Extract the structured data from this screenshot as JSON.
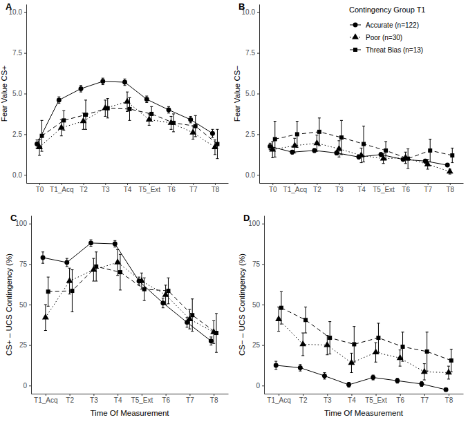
{
  "chart_data": [
    {
      "type": "line",
      "title": "A",
      "y_label": "Fear Value CS+",
      "categories": [
        "T0",
        "T1_Acq",
        "T2",
        "T3",
        "T4",
        "T5_Ext",
        "T6",
        "T7",
        "T8"
      ],
      "ylim": [
        -0.5,
        10.5
      ],
      "yticks": [
        {
          "value": 0,
          "label": "0.0"
        },
        2.5,
        {
          "value": 5,
          "label": "5.0"
        },
        7.5,
        {
          "value": 10,
          "label": "10.0"
        }
      ],
      "series": [
        {
          "color": "#000000",
          "marker": "circle",
          "line_style": "solid",
          "values": [
            1.9,
            4.6,
            5.3,
            5.75,
            5.7,
            4.65,
            4.0,
            3.4,
            2.55
          ],
          "errors": [
            0.25,
            0.2,
            0.2,
            0.2,
            0.2,
            0.2,
            0.2,
            0.2,
            0.25
          ]
        },
        {
          "color": "#000000",
          "marker": "triangle",
          "line_style": "dotted",
          "values": [
            1.7,
            2.9,
            3.3,
            4.1,
            4.5,
            3.4,
            3.2,
            2.6,
            1.7
          ],
          "errors": [
            0.5,
            0.5,
            0.5,
            0.5,
            0.6,
            0.35,
            0.4,
            0.4,
            0.45
          ]
        },
        {
          "color": "#000000",
          "marker": "square",
          "line_style": "dashed",
          "values": [
            2.4,
            3.35,
            3.7,
            4.1,
            4.05,
            3.75,
            3.2,
            3.0,
            1.9
          ],
          "errors": [
            0.95,
            0.6,
            0.9,
            0.6,
            0.7,
            0.45,
            0.55,
            0.65,
            0.9
          ]
        }
      ]
    },
    {
      "type": "line",
      "title": "B",
      "y_label": "Fear Value CS−",
      "categories": [
        "T0",
        "T1_Acq",
        "T2",
        "T3",
        "T4",
        "T5_Ext",
        "T6",
        "T7",
        "T8"
      ],
      "ylim": [
        -0.5,
        10.5
      ],
      "yticks": [
        {
          "value": 0,
          "label": "0.0"
        },
        2.5,
        {
          "value": 5,
          "label": "5.0"
        },
        7.5,
        {
          "value": 10,
          "label": "10.0"
        }
      ],
      "legend": "top-right",
      "legend_title": "Contingency Group T1",
      "series": [
        {
          "name": "Accurate (n=122)",
          "color": "#000000",
          "marker": "circle",
          "line_style": "solid",
          "values": [
            1.75,
            1.4,
            1.5,
            1.35,
            1.1,
            1.25,
            0.95,
            0.85,
            0.6
          ],
          "errors": [
            0.2,
            0.12,
            0.12,
            0.12,
            0.12,
            0.12,
            0.1,
            0.12,
            0.1
          ]
        },
        {
          "name": "Poor (n=30)",
          "color": "#000000",
          "marker": "triangle",
          "line_style": "dotted",
          "values": [
            1.55,
            1.8,
            1.95,
            1.6,
            1.2,
            1.0,
            1.05,
            0.65,
            0.2
          ],
          "errors": [
            0.5,
            0.45,
            0.5,
            0.5,
            0.45,
            0.3,
            0.35,
            0.3,
            0.15
          ]
        },
        {
          "name": "Threat Bias (n=13)",
          "color": "#000000",
          "marker": "square",
          "line_style": "dashed",
          "values": [
            2.2,
            2.5,
            2.65,
            2.3,
            1.9,
            1.5,
            1.0,
            1.5,
            1.2
          ],
          "errors": [
            1.1,
            0.8,
            0.85,
            1.05,
            1.1,
            0.55,
            0.6,
            0.7,
            0.45
          ]
        }
      ]
    },
    {
      "type": "line",
      "title": "C",
      "y_label": "CS+ – UCS Contingency (%)",
      "x_label": "Time Of Measurement",
      "categories": [
        "T1_Acq",
        "T2",
        "T3",
        "T4",
        "T5_Ext",
        "T6",
        "T7",
        "T8"
      ],
      "ylim": [
        -5,
        105
      ],
      "yticks": [
        0,
        25,
        50,
        75,
        100
      ],
      "series": [
        {
          "color": "#000000",
          "marker": "circle",
          "line_style": "solid",
          "values": [
            79,
            76,
            88,
            87.5,
            64.5,
            51,
            39,
            27.5
          ],
          "errors": [
            3.5,
            2.5,
            2,
            2,
            2.5,
            3,
            3,
            2.5
          ]
        },
        {
          "color": "#000000",
          "marker": "triangle",
          "line_style": "dotted",
          "values": [
            42,
            64.5,
            71.5,
            76,
            64.5,
            56,
            41,
            33
          ],
          "errors": [
            8,
            8,
            7,
            8,
            5,
            6,
            6,
            7
          ]
        },
        {
          "color": "#000000",
          "marker": "square",
          "line_style": "dashed",
          "values": [
            58,
            58.5,
            73.5,
            70,
            59.5,
            58.5,
            43.5,
            32.5
          ],
          "errors": [
            9,
            13,
            9,
            11,
            7,
            8,
            10,
            12
          ]
        }
      ]
    },
    {
      "type": "line",
      "title": "D",
      "y_label": "CS− – UCS Contingency (%)",
      "x_label": "Time Of Measurement",
      "categories": [
        "T1_Acq",
        "T2",
        "T3",
        "T4",
        "T5_Ext",
        "T6",
        "T7",
        "T8"
      ],
      "ylim": [
        -5,
        105
      ],
      "yticks": [
        0,
        25,
        50,
        75,
        100
      ],
      "series": [
        {
          "color": "#000000",
          "marker": "circle",
          "line_style": "solid",
          "values": [
            12.5,
            11,
            6,
            0.5,
            5,
            3,
            1,
            -2.5
          ],
          "errors": [
            2.5,
            2,
            2,
            1.5,
            1.5,
            1.5,
            1.5,
            1
          ]
        },
        {
          "color": "#000000",
          "marker": "triangle",
          "line_style": "dotted",
          "values": [
            41,
            25.5,
            25,
            14,
            20.5,
            17,
            8.5,
            8
          ],
          "errors": [
            7.5,
            7,
            6,
            6,
            6,
            5,
            5,
            4
          ]
        },
        {
          "color": "#000000",
          "marker": "square",
          "line_style": "dashed",
          "values": [
            48,
            40.5,
            29.5,
            25.5,
            29.5,
            24,
            21,
            15.5
          ],
          "errors": [
            10,
            8,
            10,
            11,
            9,
            9,
            12,
            7
          ]
        }
      ]
    }
  ]
}
